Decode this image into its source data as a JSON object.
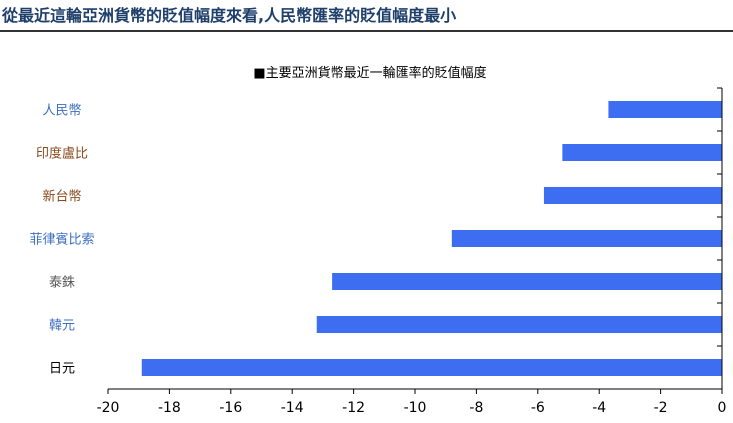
{
  "headline": "從最近這輪亞洲貨幣的貶值幅度來看,人民幣匯率的貶值幅度最小",
  "chart_data": {
    "type": "bar",
    "orientation": "horizontal",
    "title": "■主要亞洲貨幣最近一輪匯率的貶值幅度",
    "categories": [
      "人民幣",
      "印度盧比",
      "新台幣",
      "菲律賓比索",
      "泰銖",
      "韓元",
      "日元"
    ],
    "category_colors": [
      "#3c6fc0",
      "#8b4a1e",
      "#8b4a1e",
      "#3c6fc0",
      "#555555",
      "#3c6fc0",
      "#000000"
    ],
    "values": [
      -3.7,
      -5.2,
      -5.8,
      -8.8,
      -12.7,
      -13.2,
      -18.9
    ],
    "bar_color": "#3d6ef2",
    "xlim": [
      -20,
      0
    ],
    "xticks": [
      -20,
      -18,
      -16,
      -14,
      -12,
      -10,
      -8,
      -6,
      -4,
      -2,
      0
    ],
    "xlabel": "",
    "ylabel": "",
    "grid": false,
    "legend": "none"
  }
}
